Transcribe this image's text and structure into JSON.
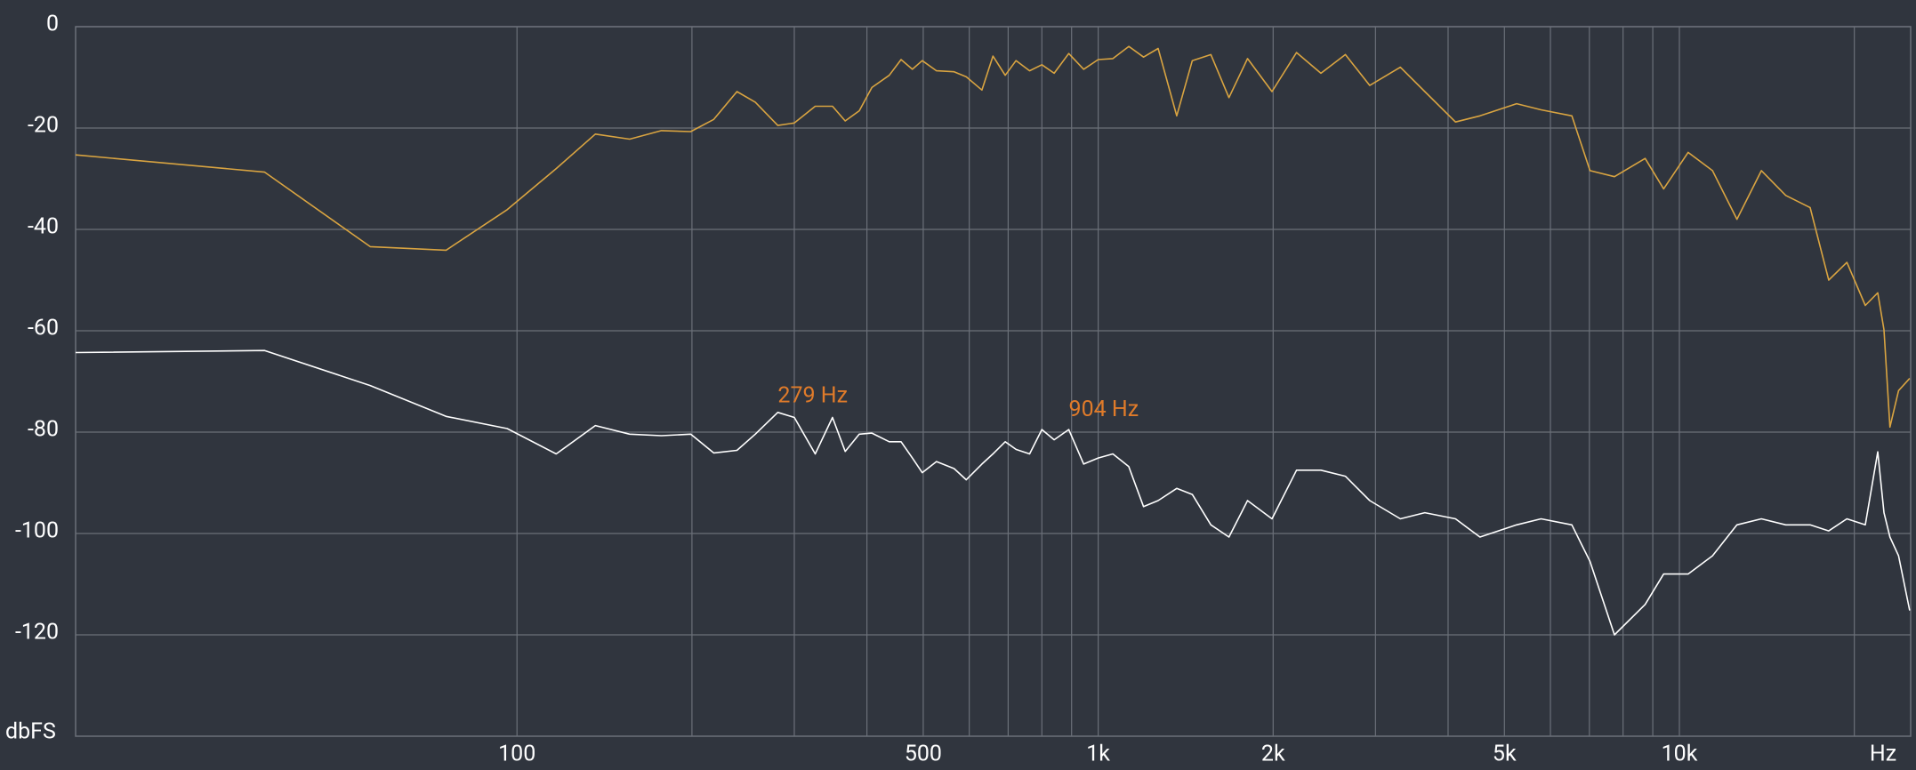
{
  "chart_data": {
    "type": "line",
    "xscale": "log",
    "xlim": [
      17.4,
      25000
    ],
    "ylim": [
      -140,
      0
    ],
    "yticks": [
      0,
      -20,
      -40,
      -60,
      -80,
      -100,
      -120
    ],
    "ylabel": "dbFS",
    "xlabel": "Hz",
    "xticks": [
      100,
      500,
      {
        "value": 1000,
        "label": "1k"
      },
      {
        "value": 2000,
        "label": "2k"
      },
      {
        "value": 5000,
        "label": "5k"
      },
      {
        "value": 10000,
        "label": "10k"
      }
    ],
    "minor_xticks": [
      200,
      300,
      400,
      600,
      700,
      800,
      900,
      3000,
      4000,
      6000,
      7000,
      8000,
      9000,
      20000
    ],
    "grid": true,
    "x": [
      17.4,
      36.8,
      55.9,
      75.5,
      96.2,
      116.8,
      136.4,
      156.3,
      177.2,
      199,
      218,
      239,
      257,
      281,
      300,
      326,
      349,
      367,
      388,
      408,
      437,
      458,
      479,
      498,
      527,
      565,
      593,
      631,
      659,
      692,
      722,
      762,
      800,
      840,
      890,
      944,
      1000,
      1060,
      1129,
      1197,
      1268,
      1365,
      1452,
      1563,
      1679,
      1807,
      1991,
      2194,
      2417,
      2663,
      2933,
      3311,
      3648,
      4119,
      4538,
      5248,
      5781,
      6531,
      7019,
      7733,
      8730,
      9397,
      10350,
      11400,
      12560,
      13840,
      15240,
      16790,
      18070,
      19420,
      20890,
      21940,
      22490,
      23030,
      23830,
      24900
    ],
    "series": [
      {
        "color": "#d9a441",
        "values": [
          -25.3,
          -28.7,
          -43.4,
          -44.1,
          -36.1,
          -28,
          -21.2,
          -22.2,
          -20.5,
          -20.7,
          -18.3,
          -12.8,
          -14.9,
          -19.5,
          -19,
          -15.7,
          -15.7,
          -18.6,
          -16.6,
          -12,
          -9.6,
          -6.5,
          -8.4,
          -6.7,
          -8.7,
          -8.9,
          -9.9,
          -12.5,
          -5.8,
          -9.6,
          -6.7,
          -8.7,
          -7.5,
          -9.2,
          -5.3,
          -8.4,
          -6.5,
          -6.3,
          -3.9,
          -6,
          -4.3,
          -17.6,
          -6.7,
          -5.5,
          -14,
          -6.3,
          -12.8,
          -5.1,
          -9.2,
          -5.5,
          -11.6,
          -8,
          -12.8,
          -18.8,
          -17.6,
          -15.2,
          -16.4,
          -17.6,
          -28.4,
          -29.6,
          -26,
          -32,
          -24.8,
          -28.4,
          -38,
          -28.4,
          -33.3,
          -35.7,
          -50,
          -46.5,
          -55,
          -52.5,
          -59.8,
          -79,
          -71.8,
          -69.4
        ]
      },
      {
        "color": "#ffffff",
        "values": [
          -64.3,
          -63.9,
          -70.8,
          -76.9,
          -79.3,
          -84.3,
          -78.7,
          -80.4,
          -80.7,
          -80.4,
          -84.1,
          -83.6,
          -80.4,
          -76.1,
          -77.1,
          -84.3,
          -77.1,
          -83.8,
          -80.4,
          -80.2,
          -81.9,
          -81.9,
          -85.1,
          -88,
          -85.8,
          -87.2,
          -89.4,
          -86.3,
          -84.3,
          -81.9,
          -83.4,
          -84.3,
          -79.5,
          -81.5,
          -79.5,
          -86.3,
          -85.1,
          -84.3,
          -86.8,
          -94.7,
          -93.5,
          -91.1,
          -92.3,
          -98.3,
          -100.7,
          -93.5,
          -97.1,
          -87.5,
          -87.5,
          -88.7,
          -93.5,
          -97.1,
          -95.9,
          -97.1,
          -100.7,
          -98.3,
          -97.1,
          -98.3,
          -105.5,
          -120,
          -114,
          -108,
          -108,
          -104.4,
          -98.3,
          -97.1,
          -98.3,
          -98.3,
          -99.5,
          -97.1,
          -98.3,
          -83.9,
          -95.9,
          -100.7,
          -104.4,
          -115.2
        ]
      }
    ],
    "annotations": [
      {
        "text": "279 Hz",
        "x": 281,
        "y": -73,
        "color": "#e07b2a"
      },
      {
        "text": "904 Hz",
        "x": 890,
        "y": -75.7,
        "color": "#e07b2a"
      }
    ]
  }
}
